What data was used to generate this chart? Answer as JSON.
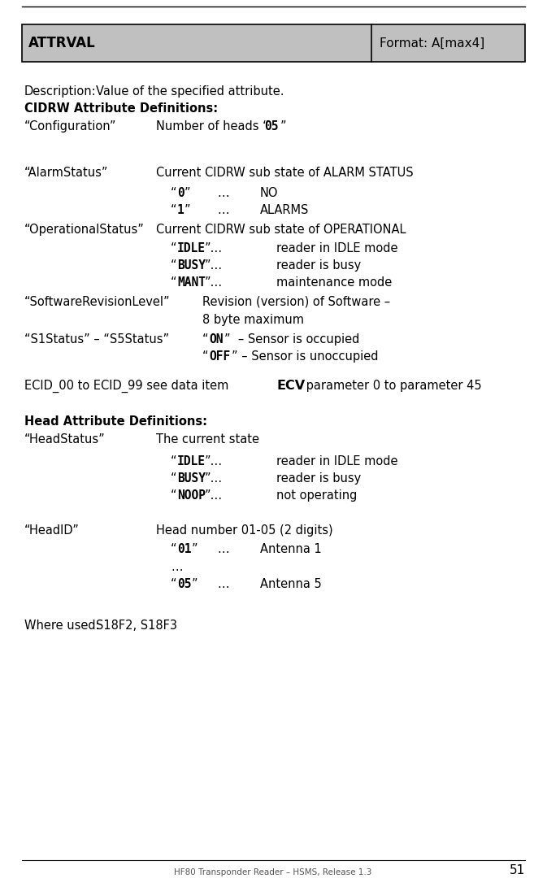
{
  "bg_color": "#ffffff",
  "header_bg": "#c0c0c0",
  "header_left": "ATTRVAL",
  "header_right": "Format: A[max4]",
  "footer_text": "HF80 Transponder Reader – HSMS, Release 1.3",
  "page_number": "51",
  "fig_width": 6.73,
  "fig_height": 10.91,
  "dpi": 100
}
